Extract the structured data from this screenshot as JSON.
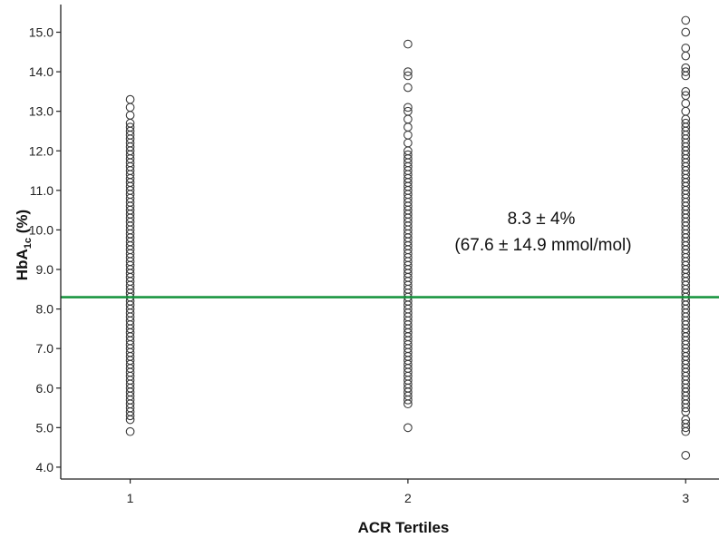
{
  "chart_data": {
    "type": "scatter",
    "xlabel": "ACR Tertiles",
    "ylabel_main": "HbA",
    "ylabel_sub": "1c",
    "ylabel_unit": " (%)",
    "x_ticks": [
      "1",
      "2",
      "3"
    ],
    "x_values": [
      1,
      2,
      3
    ],
    "xlim": [
      0.75,
      3.12
    ],
    "ylim": [
      3.7,
      15.7
    ],
    "y_ticks": [
      "4.0",
      "5.0",
      "6.0",
      "7.0",
      "8.0",
      "9.0",
      "10.0",
      "11.0",
      "12.0",
      "13.0",
      "14.0",
      "15.0"
    ],
    "y_tick_values": [
      4,
      5,
      6,
      7,
      8,
      9,
      10,
      11,
      12,
      13,
      14,
      15
    ],
    "reference_line": {
      "y": 8.3,
      "color": "#1a9641"
    },
    "annotation_line1": "8.3 ± 4%",
    "annotation_line2": "(67.6 ± 14.9 mmol/mol)",
    "series": [
      {
        "x": 1,
        "dense_range": [
          5.7,
          12.6
        ],
        "outliers": [
          4.9,
          5.2,
          5.3,
          5.4,
          5.5,
          5.6,
          12.7,
          12.9,
          13.1,
          13.3
        ]
      },
      {
        "x": 2,
        "dense_range": [
          5.7,
          12.0
        ],
        "outliers": [
          5.0,
          5.6,
          12.2,
          12.4,
          12.6,
          12.8,
          13.0,
          13.1,
          13.6,
          13.9,
          14.0,
          14.7
        ]
      },
      {
        "x": 3,
        "dense_range": [
          5.4,
          12.7
        ],
        "outliers": [
          4.3,
          4.9,
          5.0,
          5.1,
          5.2,
          12.8,
          13.0,
          13.2,
          13.4,
          13.5,
          13.9,
          14.0,
          14.1,
          14.4,
          14.6,
          15.0,
          15.3
        ]
      }
    ],
    "colors": {
      "marker": "#3a3a3a",
      "axis": "#222222"
    }
  }
}
